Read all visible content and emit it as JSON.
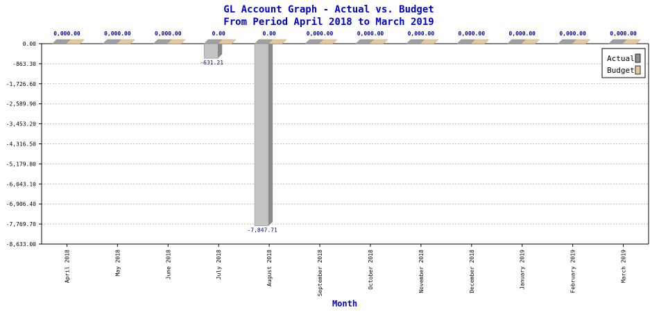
{
  "chart_data": {
    "type": "bar",
    "title": "GL Account Graph - Actual vs. Budget",
    "subtitle": "From Period April 2018 to March 2019",
    "xlabel": "Month",
    "ylabel": "",
    "categories": [
      "April 2018",
      "May 2018",
      "June 2018",
      "July 2018",
      "August 2018",
      "September 2018",
      "October 2018",
      "November 2018",
      "December 2018",
      "January 2019",
      "February 2019",
      "March 2019"
    ],
    "series": [
      {
        "name": "Actual",
        "color": "#a0a0a0",
        "values": [
          0,
          0,
          0,
          -631.21,
          -7847.71,
          0,
          0,
          0,
          0,
          0,
          0,
          0
        ]
      },
      {
        "name": "Budget",
        "color": "#e3c79d",
        "values": [
          0,
          0,
          0,
          0,
          0,
          0,
          0,
          0,
          0,
          0,
          0,
          0
        ]
      }
    ],
    "top_labels": [
      "0,000.00",
      "0,000.00",
      "0,000.00",
      "0.00",
      "0.00",
      "0,000.00",
      "0,000.00",
      "0,000.00",
      "0,000.00",
      "0,000.00",
      "0,000.00",
      "0,000.00"
    ],
    "value_labels": [
      "",
      "",
      "",
      "-631.21",
      "-7,847.71",
      "",
      "",
      "",
      "",
      "",
      "",
      ""
    ],
    "ylim": [
      -8633.0,
      0.0
    ],
    "yticks": [
      "0.00",
      "-863.30",
      "-1,726.60",
      "-2,589.90",
      "-3,453.20",
      "-4,316.50",
      "-5,179.80",
      "-6,043.10",
      "-6,906.40",
      "-7,769.70",
      "-8,633.00"
    ],
    "grid": true,
    "legend_position": "top-right"
  }
}
